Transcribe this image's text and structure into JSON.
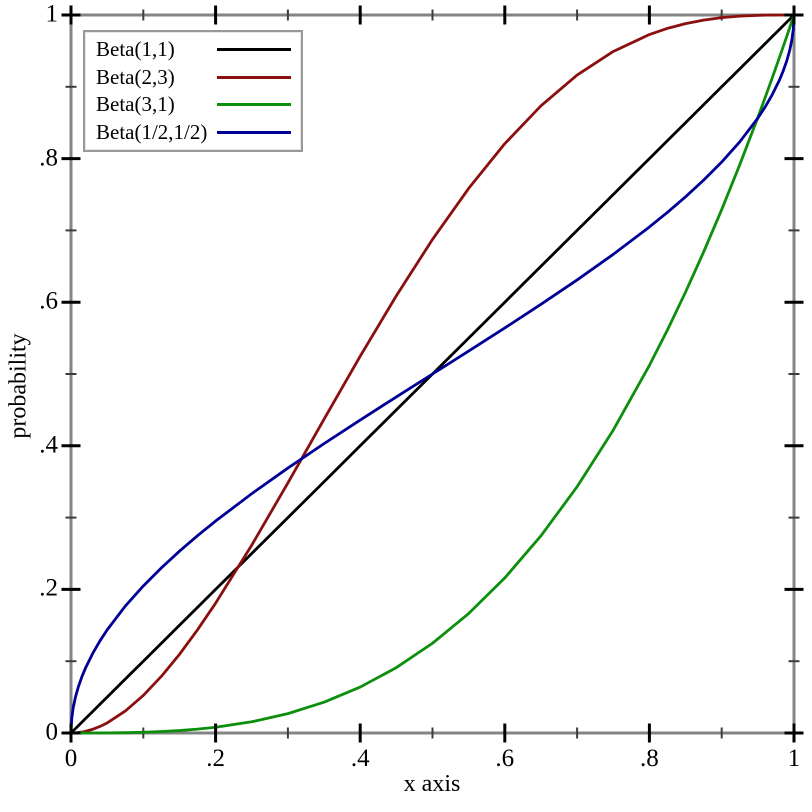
{
  "colors": {
    "background": "#ffffff",
    "frame": "#848484",
    "major_tick": "#000000",
    "minor_tick": "#3d3d3d",
    "legend_border": "#999999",
    "text": "#000000"
  },
  "chart_data": {
    "type": "line",
    "title": "",
    "xlabel": "x axis",
    "ylabel": "probability",
    "xlim": [
      0,
      1
    ],
    "ylim": [
      0,
      1
    ],
    "grid": false,
    "legend_position": "top-left",
    "x_tick_values": [
      0,
      0.2,
      0.4,
      0.6,
      0.8,
      1
    ],
    "x_tick_labels": [
      "0",
      ".2",
      ".4",
      ".6",
      ".8",
      "1"
    ],
    "y_tick_values": [
      0,
      0.2,
      0.4,
      0.6,
      0.8,
      1
    ],
    "y_tick_labels": [
      "0",
      ".2",
      ".4",
      ".6",
      ".8",
      "1"
    ],
    "minor_tick_values": [
      0.1,
      0.3,
      0.5,
      0.7,
      0.9
    ],
    "x": [
      0,
      0.001,
      0.003,
      0.006,
      0.01,
      0.015,
      0.02,
      0.03,
      0.04,
      0.05,
      0.075,
      0.1,
      0.125,
      0.15,
      0.175,
      0.2,
      0.25,
      0.3,
      0.35,
      0.4,
      0.45,
      0.5,
      0.55,
      0.6,
      0.65,
      0.7,
      0.75,
      0.8,
      0.825,
      0.85,
      0.875,
      0.9,
      0.925,
      0.95,
      0.96,
      0.97,
      0.98,
      0.985,
      0.99,
      0.994,
      0.997,
      0.999,
      1
    ],
    "series": [
      {
        "name": "Beta(1,1)",
        "color": "#000000",
        "y": [
          0,
          0.001,
          0.003,
          0.006,
          0.01,
          0.015,
          0.02,
          0.03,
          0.04,
          0.05,
          0.075,
          0.1,
          0.125,
          0.15,
          0.175,
          0.2,
          0.25,
          0.3,
          0.35,
          0.4,
          0.45,
          0.5,
          0.55,
          0.6,
          0.65,
          0.7,
          0.75,
          0.8,
          0.825,
          0.85,
          0.875,
          0.9,
          0.925,
          0.95,
          0.96,
          0.97,
          0.98,
          0.985,
          0.99,
          0.994,
          0.997,
          0.999,
          1
        ]
      },
      {
        "name": "Beta(2,3)",
        "color": "#8b0f0f",
        "y": [
          0,
          0,
          0.0001,
          0.0002,
          0.0006,
          0.0013,
          0.0023,
          0.0052,
          0.0091,
          0.014,
          0.0305,
          0.0523,
          0.0789,
          0.1095,
          0.1437,
          0.1808,
          0.2617,
          0.3483,
          0.437,
          0.5248,
          0.609,
          0.6875,
          0.7585,
          0.8208,
          0.8735,
          0.9163,
          0.9492,
          0.9728,
          0.9814,
          0.988,
          0.9929,
          0.9963,
          0.9984,
          0.9995,
          0.9998,
          0.9999,
          1,
          1,
          1,
          1,
          1,
          1,
          1
        ]
      },
      {
        "name": "Beta(3,1)",
        "color": "#0c8f0c",
        "y": [
          0,
          0,
          0,
          0,
          0,
          0,
          0,
          0,
          0.0001,
          0.0001,
          0.0004,
          0.001,
          0.002,
          0.0034,
          0.0054,
          0.008,
          0.0156,
          0.027,
          0.0429,
          0.064,
          0.0911,
          0.125,
          0.1664,
          0.216,
          0.2746,
          0.343,
          0.4219,
          0.512,
          0.5614,
          0.6141,
          0.6699,
          0.729,
          0.7915,
          0.8574,
          0.8847,
          0.9127,
          0.9412,
          0.9557,
          0.9703,
          0.9821,
          0.991,
          0.997,
          1
        ]
      },
      {
        "name": "Beta(1/2,1/2)",
        "color": "#000096",
        "y": [
          0,
          0.0201,
          0.0349,
          0.0494,
          0.0638,
          0.0782,
          0.0903,
          0.1108,
          0.1282,
          0.1436,
          0.1766,
          0.2048,
          0.23,
          0.2532,
          0.2748,
          0.2952,
          0.3333,
          0.369,
          0.403,
          0.4359,
          0.4681,
          0.5,
          0.5319,
          0.5641,
          0.597,
          0.631,
          0.6667,
          0.7048,
          0.7252,
          0.7468,
          0.77,
          0.7952,
          0.8234,
          0.8564,
          0.8718,
          0.8892,
          0.9097,
          0.9218,
          0.9362,
          0.9506,
          0.9651,
          0.9799,
          1
        ]
      }
    ]
  }
}
